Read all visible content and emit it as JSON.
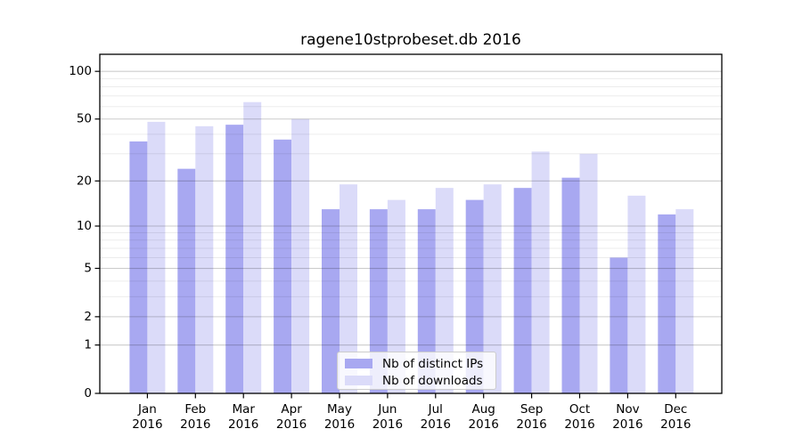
{
  "title": "ragene10stprobeset.db 2016",
  "chart_data": {
    "type": "bar",
    "title": "ragene10stprobeset.db 2016",
    "categories": [
      "Jan",
      "Feb",
      "Mar",
      "Apr",
      "May",
      "Jun",
      "Jul",
      "Aug",
      "Sep",
      "Oct",
      "Nov",
      "Dec"
    ],
    "year_label": "2016",
    "series": [
      {
        "name": "Nb of distinct IPs",
        "color": "#a8a8f1",
        "values": [
          36,
          24,
          46,
          37,
          13,
          13,
          13,
          15,
          18,
          21,
          6,
          12
        ]
      },
      {
        "name": "Nb of downloads",
        "color": "#dbdbf9",
        "values": [
          48,
          45,
          64,
          50,
          19,
          15,
          18,
          19,
          31,
          30,
          16,
          13
        ]
      }
    ],
    "y_axis": {
      "scale": "log1p",
      "ticks": [
        0,
        1,
        2,
        5,
        10,
        20,
        50,
        100
      ],
      "minor_ticks": [
        3,
        4,
        6,
        7,
        8,
        9,
        30,
        40,
        60,
        70,
        80,
        90
      ],
      "max": 100
    },
    "legend": {
      "position": "bottom-center"
    },
    "grid": true
  }
}
